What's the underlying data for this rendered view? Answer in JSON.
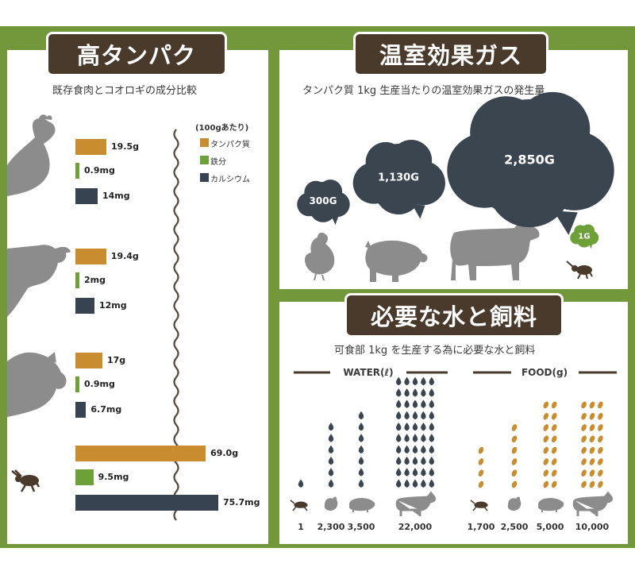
{
  "colors": {
    "frame": "#73973b",
    "protein": "#c98c2e",
    "iron": "#6ea03a",
    "calcium": "#374350",
    "cloud": "#3a4550",
    "animal": "#8c8c8c",
    "dark": "#4a3a2c"
  },
  "protein": {
    "title": "高タンパク",
    "subtitle": "既存食肉とコオロギの成分比較",
    "legend": {
      "unit": "(100gあたり)",
      "items": [
        {
          "name": "タンパク質",
          "color": "#c98c2e"
        },
        {
          "name": "鉄分",
          "color": "#6ea03a"
        },
        {
          "name": "カルシウム",
          "color": "#374350"
        }
      ]
    }
  },
  "ghg": {
    "title": "温室効果ガス",
    "subtitle": "タンパク質 1kg 生産当たりの温室効果ガスの発生量"
  },
  "resources": {
    "title": "必要な水と飼料",
    "subtitle": "可食部 1kg を生産する為に必要な水と飼料",
    "water_title": "WATER(ℓ)",
    "food_title": "FOOD(g)"
  },
  "chart_data": [
    {
      "type": "bar",
      "categories": [
        "chicken",
        "cow",
        "pig",
        "cricket"
      ],
      "series": [
        {
          "name": "タンパク質",
          "values": [
            19.5,
            19.4,
            17,
            69.0
          ],
          "labels": [
            "19.5g",
            "19.4g",
            "17g",
            "69.0g"
          ]
        },
        {
          "name": "鉄分",
          "values": [
            0.9,
            2,
            0.9,
            9.5
          ],
          "labels": [
            "0.9mg",
            "2mg",
            "0.9mg",
            "9.5mg"
          ]
        },
        {
          "name": "カルシウム",
          "values": [
            14,
            12,
            6.7,
            75.7
          ],
          "labels": [
            "14mg",
            "12mg",
            "6.7mg",
            "75.7mg"
          ]
        }
      ]
    },
    {
      "type": "bubble",
      "categories": [
        "chicken",
        "pig",
        "cow",
        "cricket"
      ],
      "values": [
        300,
        1130,
        2850,
        1
      ],
      "labels": [
        "300G",
        "1,130G",
        "2,850G",
        "1G"
      ]
    },
    {
      "type": "pictogram",
      "name": "WATER(ℓ)",
      "categories": [
        "cricket",
        "chicken",
        "pig",
        "cow"
      ],
      "values": [
        1,
        2300,
        3500,
        22000
      ],
      "labels": [
        "1",
        "2,300",
        "3,500",
        "22,000"
      ]
    },
    {
      "type": "pictogram",
      "name": "FOOD(g)",
      "categories": [
        "cricket",
        "chicken",
        "pig",
        "cow"
      ],
      "values": [
        1700,
        2500,
        5000,
        10000
      ],
      "labels": [
        "1,700",
        "2,500",
        "5,000",
        "10,000"
      ]
    }
  ]
}
